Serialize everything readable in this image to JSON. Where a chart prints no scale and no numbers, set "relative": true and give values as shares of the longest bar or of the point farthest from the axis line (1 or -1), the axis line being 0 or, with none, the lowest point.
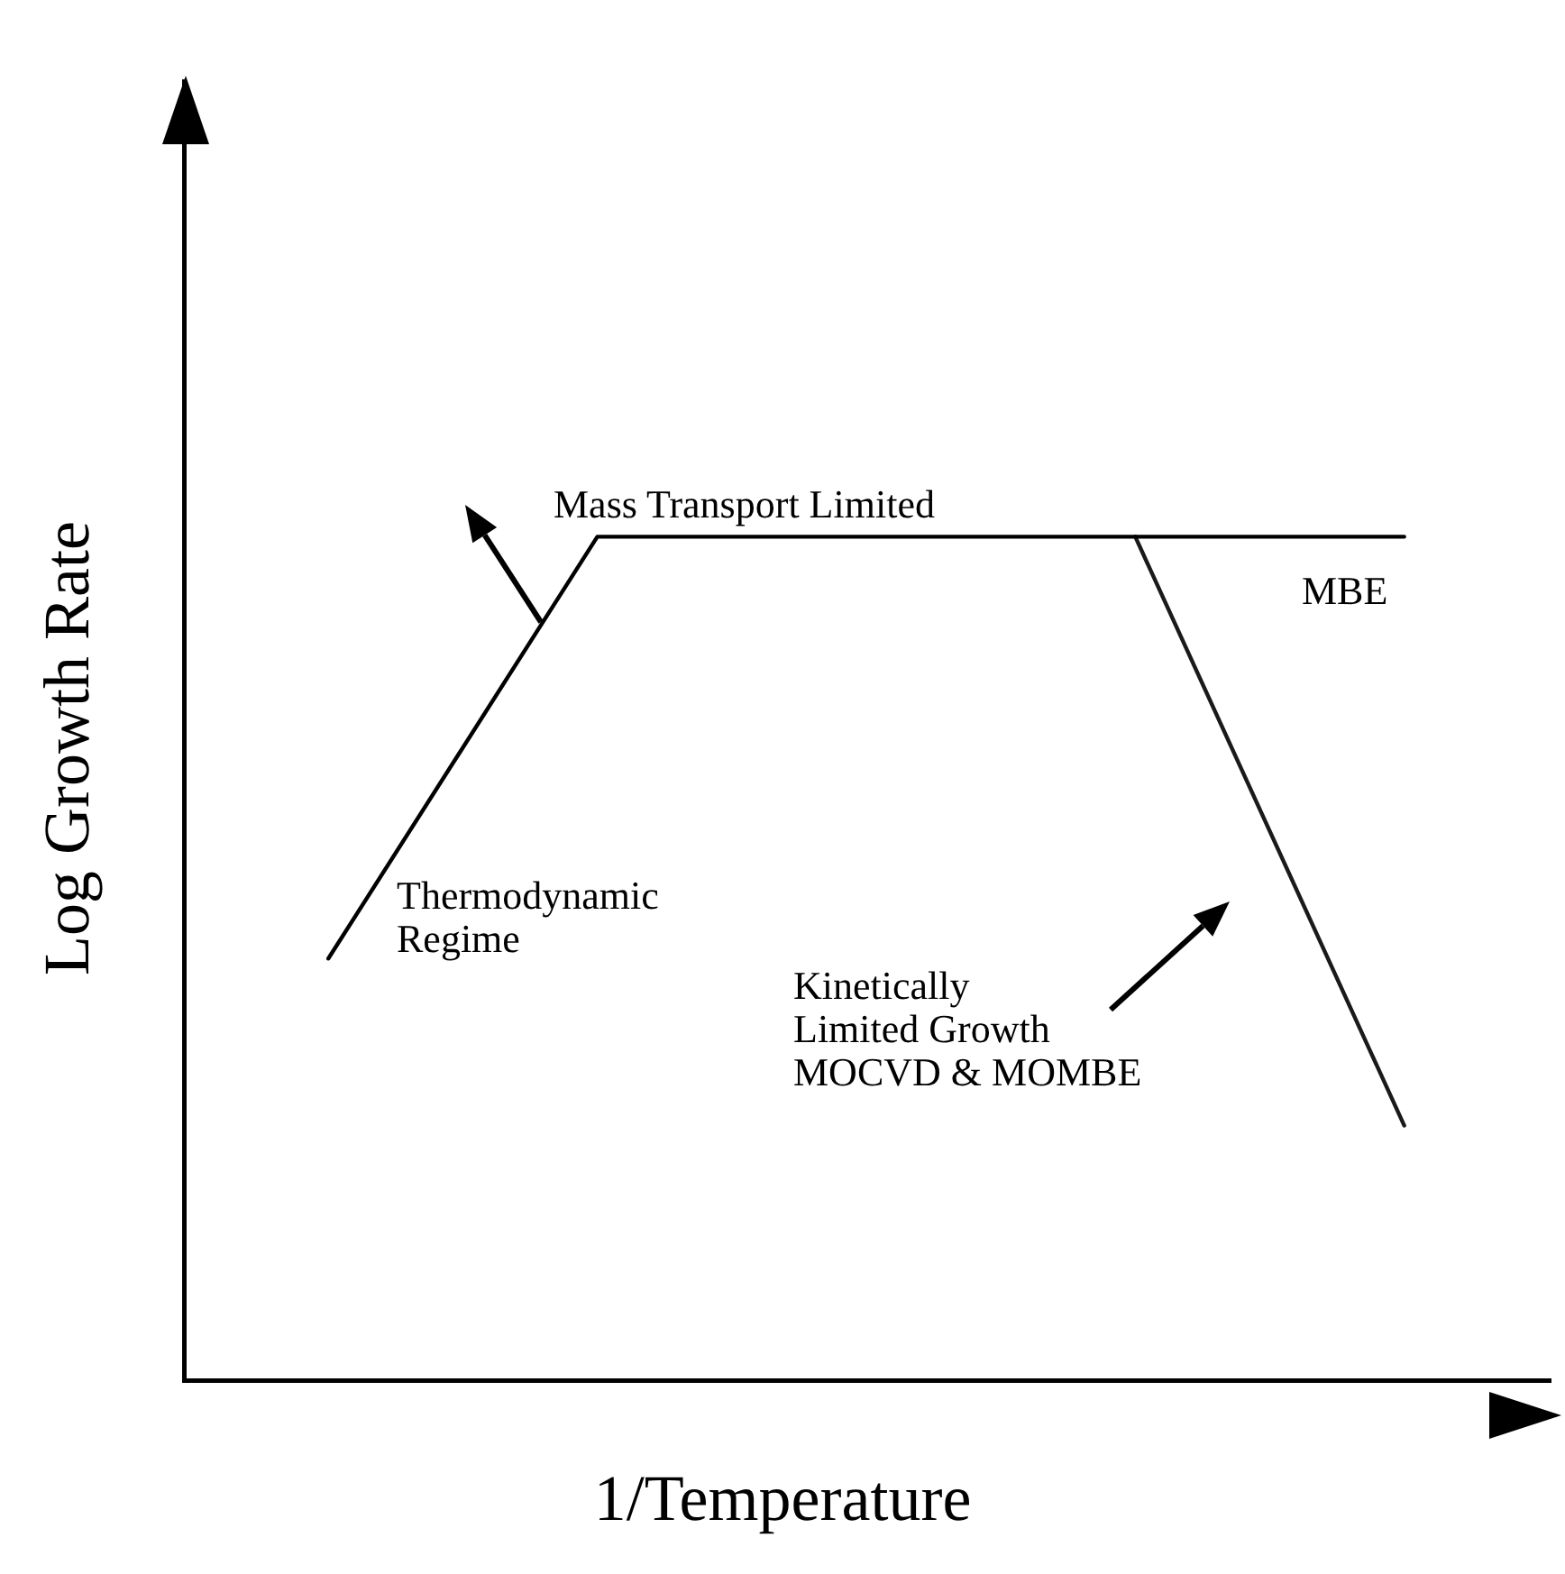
{
  "chart_data": {
    "type": "line",
    "xlabel": "1/Temperature",
    "ylabel": "Log Growth Rate",
    "relative": true,
    "categories": [
      null,
      null,
      null,
      null,
      null
    ],
    "grid": false,
    "legend": false,
    "marker": "none",
    "line_style": "solid",
    "series": [
      {
        "color": "#000000",
        "values": [
          0.5,
          1,
          1,
          1,
          1
        ]
      },
      {
        "color": "#1a1a1a",
        "values": [
          null,
          null,
          null,
          1,
          0.302
        ]
      }
    ],
    "annotations": [
      "Mass Transport Limited",
      "MBE",
      "Thermodynamic\nRegime",
      "Kinetically\nLimited Growth\nMOCVD & MOMBE"
    ]
  }
}
